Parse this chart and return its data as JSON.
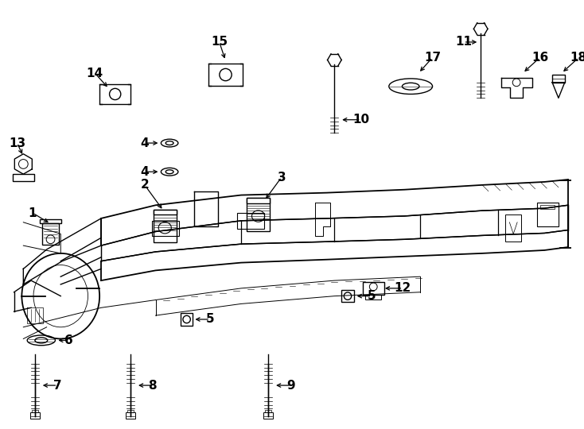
{
  "bg_color": "#ffffff",
  "line_color": "#000000",
  "fig_width": 7.34,
  "fig_height": 5.4,
  "dpi": 100,
  "label_fs": 11,
  "lw": 1.0
}
